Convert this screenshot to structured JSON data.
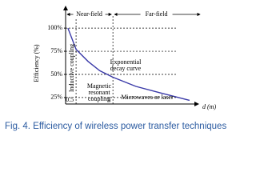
{
  "chart_data": {
    "type": "line",
    "y_label": "Efficiency (%)",
    "x_label": "d (m)",
    "caption": "Fig. 4. Efficiency of wireless power transfer techniques",
    "regions": [
      "Near-field",
      "Far-field"
    ],
    "annotations": [
      [
        "Inductive coupling"
      ],
      [
        "Exponential",
        "decay curve"
      ],
      [
        "Magnetic",
        "resonant",
        "coupling"
      ],
      [
        "Microwaves or laser"
      ]
    ],
    "x": [
      0.3,
      0.5,
      1.06,
      2.2,
      5,
      21,
      96,
      600
    ],
    "values": [
      100,
      77,
      64,
      54,
      47,
      37,
      30,
      22
    ],
    "color": "#3a3aa8",
    "xlog": true,
    "xlim": [
      0.26,
      700
    ],
    "ylim": [
      18,
      120
    ],
    "xticks": [
      0.5,
      5
    ],
    "yticks": [
      {
        "value": 25,
        "label": "25%"
      },
      {
        "value": 50,
        "label": "50%"
      },
      {
        "value": 75,
        "label": "75%"
      },
      {
        "value": 100,
        "label": "100%"
      }
    ],
    "grid": true
  }
}
